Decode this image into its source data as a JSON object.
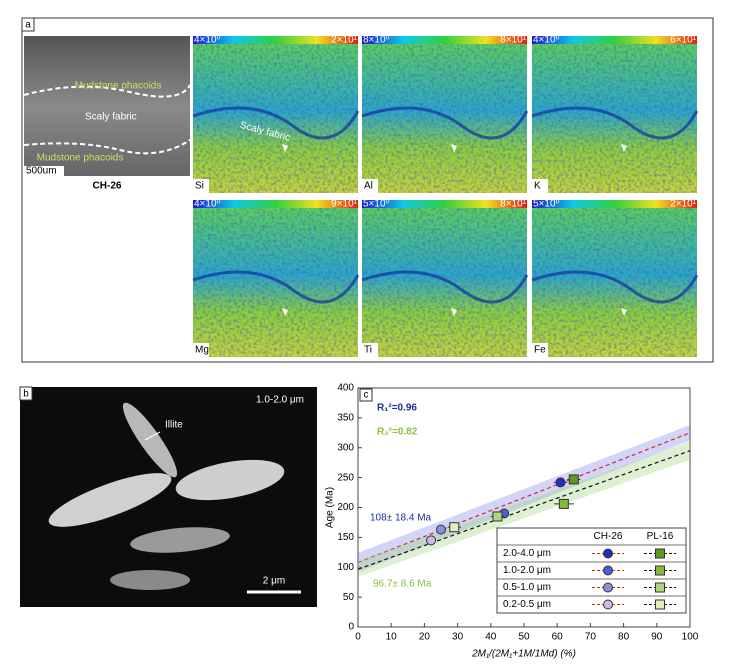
{
  "panel_a": {
    "label": "a",
    "bse": {
      "annotations": [
        "Mudstone phacoids",
        "Scaly fabric",
        "Mudstone phacoids"
      ],
      "scale": "500um",
      "sample": "CH-26"
    },
    "scaly_label": "Scaly fabric",
    "maps": [
      {
        "element": "Si",
        "min": "4×10⁰",
        "max": "2×10¹"
      },
      {
        "element": "Al",
        "min": "8×10⁰",
        "max": "8×10¹"
      },
      {
        "element": "K",
        "min": "4×10⁰",
        "max": "6×10¹"
      },
      {
        "element": "Mg",
        "min": "4×10⁰",
        "max": "9×10¹"
      },
      {
        "element": "Ti",
        "min": "5×10⁰",
        "max": "8×10¹"
      },
      {
        "element": "Fe",
        "min": "5×10⁰",
        "max": "2×10¹"
      }
    ]
  },
  "panel_b": {
    "label": "b",
    "size": "1.0-2.0 μm",
    "annotation": "Illite",
    "scale": "2 μm"
  },
  "chart_data": {
    "type": "scatter",
    "label": "c",
    "xlabel": "2M₁/(2M₁+1M/1Md) (%)",
    "ylabel": "Age (Ma)",
    "xlim": [
      0,
      100
    ],
    "xticks": [
      0,
      10,
      20,
      30,
      40,
      50,
      60,
      70,
      80,
      90,
      100
    ],
    "ylim": [
      0,
      400
    ],
    "yticks": [
      0,
      50,
      100,
      150,
      200,
      250,
      300,
      350,
      400
    ],
    "categories": [
      "2.0-4.0 μm",
      "1.0-2.0 μm",
      "0.5-1.0 μm",
      "0.2-0.5 μm"
    ],
    "series": [
      {
        "name": "CH-26",
        "marker": "circle",
        "colors": [
          "#1f2fbf",
          "#4a5fd8",
          "#8b8fe2",
          "#cdb8e8"
        ],
        "line_color": "#d62728",
        "x": [
          61,
          44,
          25,
          22
        ],
        "values": [
          242,
          190,
          163,
          145
        ],
        "x_err": [
          2,
          1.5,
          1.5,
          1.5
        ],
        "fit": {
          "intercept": 108,
          "intercept_label": "108± 18.4 Ma",
          "end": 325,
          "band_start": [
            92,
            124
          ],
          "band_end": [
            312,
            338
          ],
          "band_color": "#7e86e6",
          "label_color": "#1f2fa0",
          "r2_label": "R₁²=0.96"
        }
      },
      {
        "name": "PL-16",
        "marker": "square",
        "colors": [
          "#5d9a1e",
          "#86b83c",
          "#b3d47a",
          "#e3edb8"
        ],
        "line_color": "#111111",
        "x": [
          65,
          62,
          42,
          29
        ],
        "values": [
          247,
          206,
          185,
          167
        ],
        "x_err": [
          2,
          3,
          2,
          2
        ],
        "fit": {
          "intercept": 96.7,
          "intercept_label": "96.7± 8.6 Ma",
          "end": 295,
          "band_start": [
            84,
            110
          ],
          "band_end": [
            280,
            310
          ],
          "band_color": "#9ed67e",
          "label_color": "#8cc044",
          "r2_label": "R₂²=0.82"
        }
      }
    ]
  }
}
